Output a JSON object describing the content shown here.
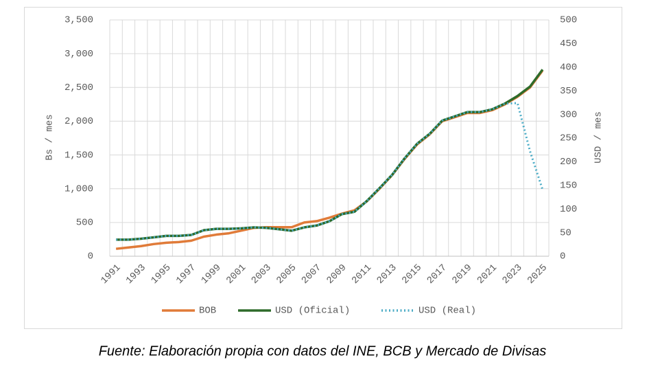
{
  "chart_data": {
    "type": "line",
    "ylabel": "Bs / mes",
    "y2label": "USD / mes",
    "categories": [
      "1991",
      null,
      "1993",
      null,
      "1995",
      null,
      "1997",
      null,
      "1999",
      null,
      "2001",
      null,
      "2003",
      null,
      "2005",
      null,
      "2007",
      null,
      "2009",
      null,
      "2011",
      null,
      "2013",
      null,
      "2015",
      null,
      "2017",
      null,
      "2019",
      null,
      "2021",
      null,
      "2023",
      null,
      "2025"
    ],
    "series": [
      {
        "name": "BOB",
        "color": "#e07b39",
        "values": [
          110,
          130,
          150,
          180,
          200,
          210,
          230,
          290,
          320,
          340,
          380,
          420,
          430,
          430,
          430,
          500,
          520,
          570,
          630,
          680,
          815,
          1000,
          1200,
          1440,
          1656,
          1805,
          2000,
          2060,
          2122,
          2122,
          2164,
          2250,
          2362,
          2500,
          2750
        ]
      },
      {
        "name": "USD (Oficial)",
        "color": "#2e6b2a",
        "axis": "y2",
        "values": [
          35,
          35,
          37,
          40,
          43,
          43,
          45,
          55,
          58,
          58,
          59,
          61,
          60,
          57,
          54,
          61,
          65,
          74,
          89,
          94,
          117,
          144,
          172,
          207,
          238,
          259,
          287,
          296,
          305,
          305,
          311,
          323,
          339,
          359,
          395
        ]
      },
      {
        "name": "USD (Real)",
        "color": "#4bacc6",
        "axis": "y2",
        "dashed": true,
        "values": [
          35,
          35,
          37,
          40,
          43,
          43,
          45,
          55,
          58,
          58,
          59,
          61,
          60,
          57,
          54,
          61,
          65,
          74,
          89,
          94,
          117,
          144,
          172,
          207,
          238,
          259,
          287,
          296,
          305,
          305,
          311,
          323,
          324,
          222,
          141
        ]
      }
    ],
    "ylim": [
      0,
      3500
    ],
    "yticks": [
      0,
      {
        "value": 500,
        "label": "500"
      },
      {
        "value": 1000,
        "label": "1,000"
      },
      {
        "value": 1500,
        "label": "1,500"
      },
      {
        "value": 2000,
        "label": "2,000"
      },
      {
        "value": 2500,
        "label": "2,500"
      },
      {
        "value": 3000,
        "label": "3,000"
      },
      {
        "value": 3500,
        "label": "3,500"
      }
    ],
    "y2lim": [
      0,
      500
    ],
    "y2ticks": [
      0,
      50,
      100,
      150,
      200,
      250,
      300,
      350,
      400,
      450,
      500
    ],
    "grid": true,
    "legend": "bottom",
    "source": "Fuente: Elaboración propia con datos del INE, BCB y Mercado de Divisas"
  }
}
